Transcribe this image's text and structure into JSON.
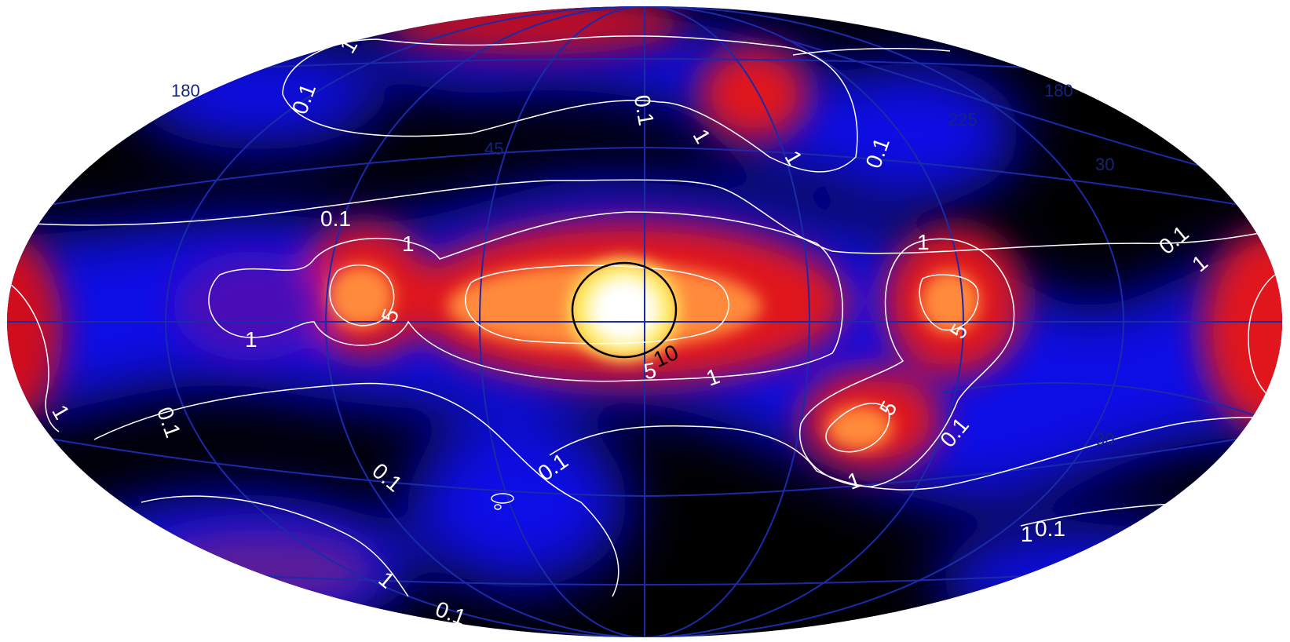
{
  "projection": "Aitoff/Hammer all-sky (Galactic coordinates)",
  "colors": {
    "background": "#ffffff",
    "sky_low": "#000000",
    "sky_mid": "#0000ee",
    "sky_high": "#ff1a00",
    "sky_peak": "#ffffff",
    "grid": "#1b2aa8",
    "grid_label": "#16247a",
    "contour": "#ffffff",
    "contour_peak": "#000000"
  },
  "grid_labels": {
    "lon_left": "180",
    "lon_right": "180",
    "lon_mid": "225",
    "lat_upper_left": "45",
    "lat_upper_right": "30",
    "lat_lower_right": "30"
  },
  "contour_labels": {
    "l01_a": "0.1",
    "l01_b": "0.1",
    "l01_c": "0.1",
    "l01_d": "0.1",
    "l01_e": "0.1",
    "l01_f": "0.1",
    "l01_g": "0.1",
    "l01_h": "0.1",
    "l01_i": "0.1",
    "l01_j": "0.1",
    "l01_k": "0.1",
    "l1_a": "1",
    "l1_b": "1",
    "l1_c": "1",
    "l1_d": "1",
    "l1_e": "1",
    "l1_f": "1",
    "l1_g": "1",
    "l1_h": "1",
    "l1_i": "1",
    "l1_j": "1",
    "l1_k": "1",
    "l1_l": "1",
    "l5_a": "5",
    "l5_b": "5",
    "l5_c": "5",
    "l5_d": "5",
    "l10": "10"
  }
}
